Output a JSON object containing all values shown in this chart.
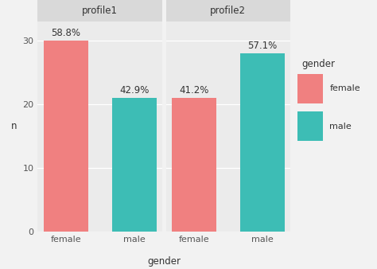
{
  "facets": [
    "profile1",
    "profile2"
  ],
  "categories": [
    "female",
    "male"
  ],
  "values": {
    "profile1": [
      30,
      21
    ],
    "profile2": [
      21,
      28
    ]
  },
  "percentages": {
    "profile1": [
      "58.8%",
      "42.9%"
    ],
    "profile2": [
      "41.2%",
      "57.1%"
    ]
  },
  "bar_colors": {
    "profile1": [
      "#F08080",
      "#3DBDB5"
    ],
    "profile2": [
      "#F08080",
      "#3DBDB5"
    ]
  },
  "ylim": [
    0,
    33
  ],
  "yticks": [
    0,
    10,
    20,
    30
  ],
  "xlabel": "gender",
  "ylabel": "n",
  "legend_title": "gender",
  "legend_labels": [
    "female",
    "male"
  ],
  "legend_colors": [
    "#F08080",
    "#3DBDB5"
  ],
  "panel_bg": "#EBEBEB",
  "plot_bg": "#F2F2F2",
  "grid_color": "#FFFFFF",
  "facet_header_bg": "#D9D9D9",
  "facet_header_color": "#333333",
  "title_fontsize": 8.5,
  "label_fontsize": 8.5,
  "tick_fontsize": 8,
  "pct_fontsize": 8.5
}
